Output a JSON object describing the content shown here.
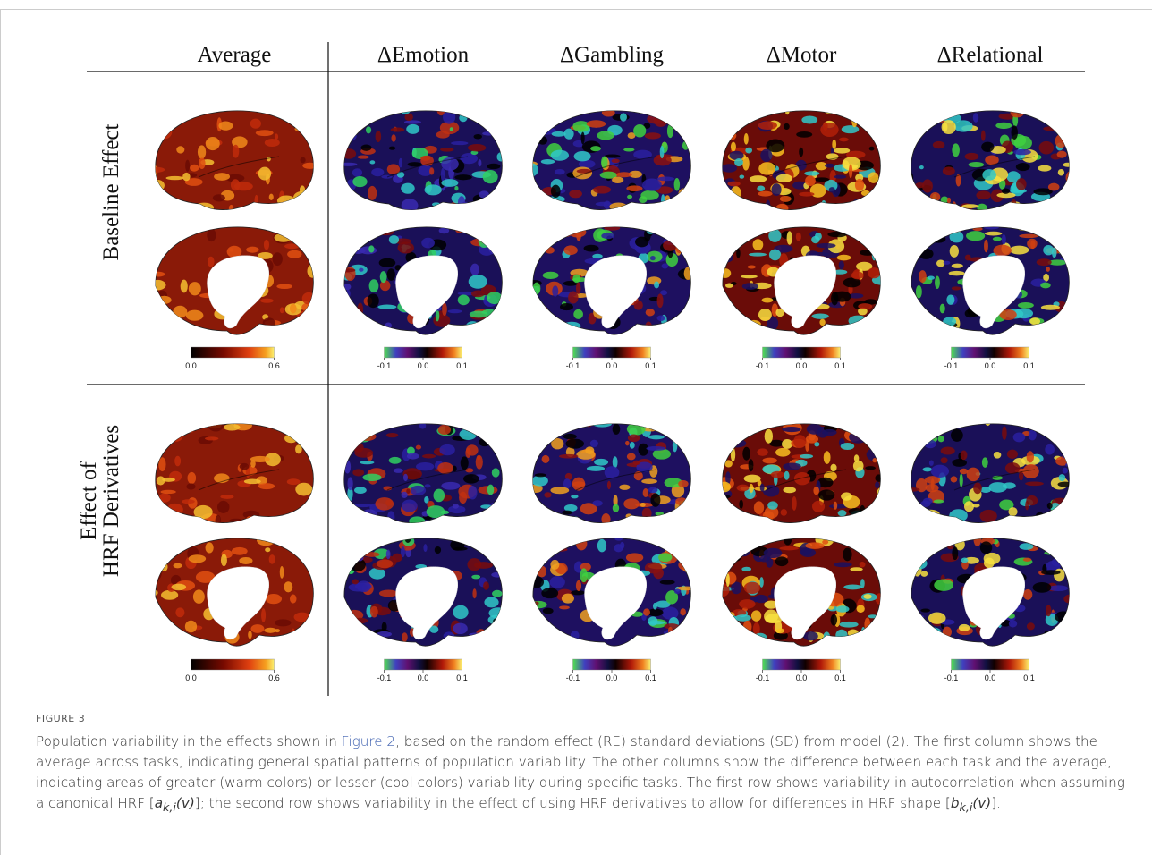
{
  "figure": {
    "columns": [
      "Average",
      "ΔEmotion",
      "ΔGambling",
      "ΔMotor",
      "ΔRelational"
    ],
    "rows": [
      [
        "Baseline Effect"
      ],
      [
        "Effect of",
        "HRF Derivatives"
      ]
    ],
    "colorbars": {
      "average": [
        "0.0",
        "0.6"
      ],
      "delta": [
        "-0.1",
        "0.0",
        "0.1"
      ]
    }
  },
  "caption": {
    "label": "FIGURE 3",
    "text_1": "Population variability in the effects shown in ",
    "link": "Figure 2",
    "text_2": ", based on the random effect (RE) standard deviations (SD) from model (2). The first column shows the average across tasks, indicating general spatial patterns of population variability. The other columns show the difference between each task and the average, indicating areas of greater (warm colors) or lesser (cool colors) variability during specific tasks. The first row shows variability in autocorrelation when assuming a canonical HRF [",
    "a": "a",
    "a_sub": "k,i",
    "a_arg": "(v)",
    "text_3": "]; the second row shows variability in the effect of using HRF derivatives to allow for differences in HRF shape [",
    "b": "b",
    "b_sub": "k,i",
    "b_arg": "(v)",
    "text_4": "]."
  }
}
